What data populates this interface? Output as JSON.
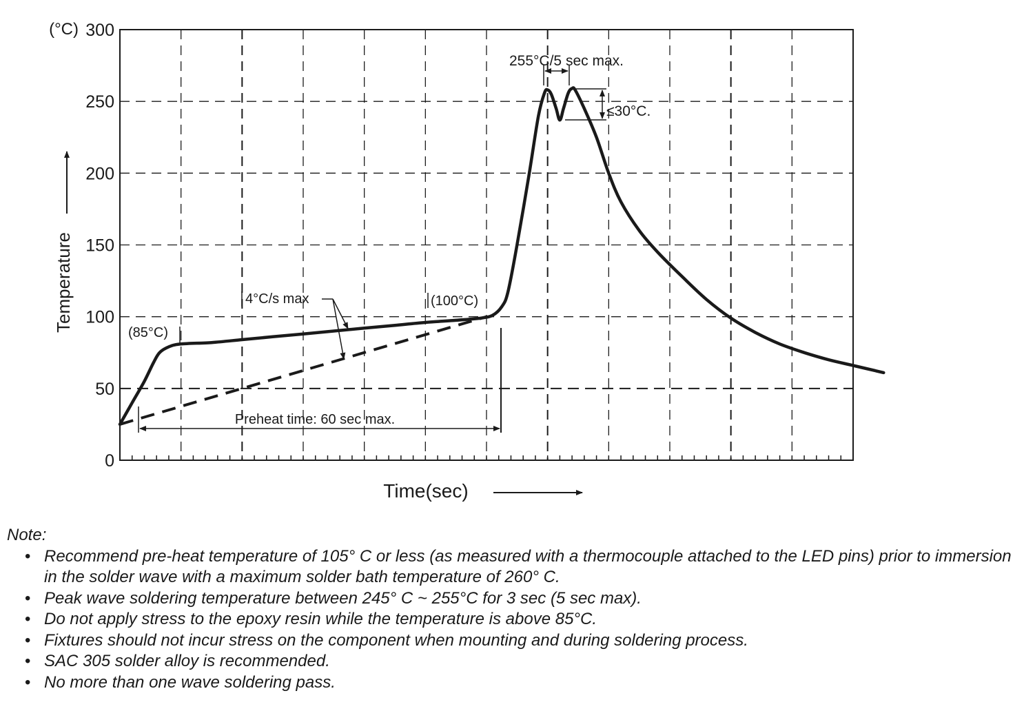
{
  "chart_data": {
    "type": "line",
    "title": "",
    "xlabel": "Time(sec)",
    "ylabel": "Temperature",
    "y_unit": "(°C)",
    "ylim": [
      0,
      300
    ],
    "y_ticks": [
      "0",
      "50",
      "100",
      "150",
      "200",
      "250",
      "300"
    ],
    "x_ticks": [],
    "grid": true,
    "series": [
      {
        "style": "solid",
        "points": [
          [
            0,
            25
          ],
          [
            2,
            40
          ],
          [
            4,
            55
          ],
          [
            5.5,
            68
          ],
          [
            6.5,
            75
          ],
          [
            8,
            79
          ],
          [
            10,
            81
          ],
          [
            15,
            82
          ],
          [
            20,
            84
          ],
          [
            25,
            86
          ],
          [
            30,
            88
          ],
          [
            35,
            90
          ],
          [
            40,
            92
          ],
          [
            45,
            94
          ],
          [
            50,
            96
          ],
          [
            55,
            97.5
          ],
          [
            59,
            99
          ],
          [
            61,
            101
          ],
          [
            62.5,
            107
          ],
          [
            63.5,
            117
          ],
          [
            65,
            150
          ],
          [
            67,
            200
          ],
          [
            68.5,
            240
          ],
          [
            69.5,
            256
          ],
          [
            70,
            258
          ],
          [
            70.6,
            255
          ],
          [
            71.4,
            245
          ],
          [
            72,
            237
          ],
          [
            72.6,
            245
          ],
          [
            73.4,
            256
          ],
          [
            74,
            259
          ],
          [
            74.5,
            258
          ],
          [
            76,
            245
          ],
          [
            78,
            225
          ],
          [
            80,
            200
          ],
          [
            82,
            180
          ],
          [
            85,
            160
          ],
          [
            88,
            145
          ],
          [
            92,
            128
          ],
          [
            96,
            112
          ],
          [
            100,
            99
          ],
          [
            104,
            89
          ],
          [
            108,
            81
          ],
          [
            112,
            75
          ],
          [
            116,
            70
          ],
          [
            120,
            66
          ],
          [
            125,
            61
          ]
        ]
      },
      {
        "style": "dashed",
        "points": [
          [
            0,
            25
          ],
          [
            60,
            100
          ]
        ]
      }
    ],
    "annotations": {
      "preheat_85": "(85°C)",
      "preheat_100": "(100°C)",
      "ramp_rate": "4°C/s max",
      "preheat_time": "Preheat time: 60 sec max.",
      "peak_time": "255°C/5 sec max.",
      "peak_delta": "≤30°C."
    }
  },
  "notes": {
    "heading": "Note:",
    "bullet": "•",
    "items": [
      "Recommend pre-heat temperature of 105° C or less (as measured with a thermocouple attached to the LED pins) prior to immersion in the solder wave with a maximum solder bath temperature of 260° C.",
      "Peak wave soldering temperature between 245° C ~ 255°C for 3 sec (5 sec max).",
      "Do not apply stress to the epoxy resin while the temperature is above 85°C.",
      "Fixtures should not incur stress on the component when mounting and during soldering process.",
      "SAC 305 solder alloy is recommended.",
      "No more than one wave soldering pass."
    ]
  }
}
